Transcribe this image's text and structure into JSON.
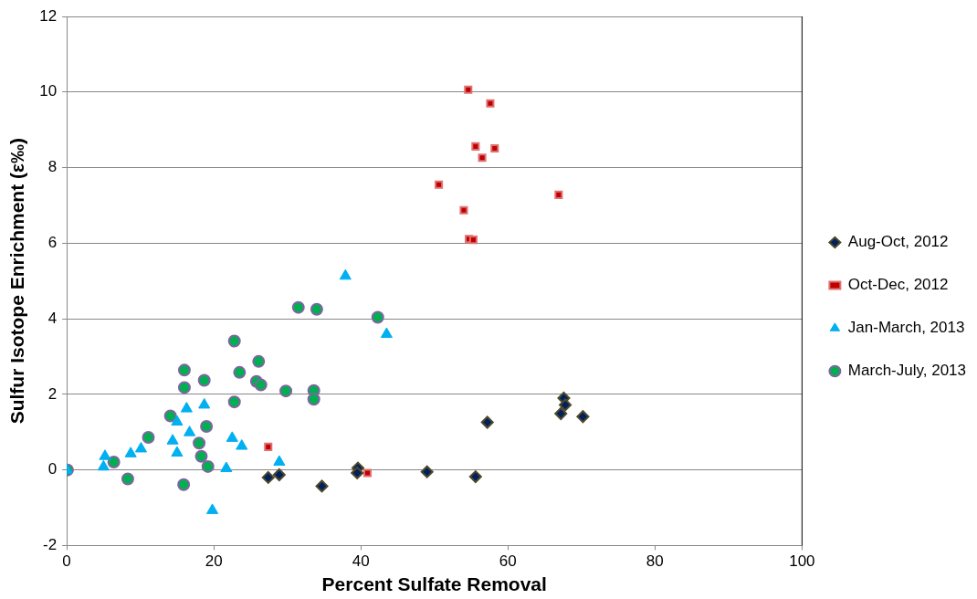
{
  "chart_data": {
    "type": "scatter",
    "xlabel": "Percent Sulfate Removal",
    "ylabel": "Sulfur Isotope Enrichment (ε‰)",
    "xlim": [
      0,
      100
    ],
    "xticks": [
      0,
      20,
      40,
      60,
      80,
      100
    ],
    "ylim": [
      -2,
      12
    ],
    "yticks": [
      -2,
      0,
      2,
      4,
      6,
      8,
      10,
      12
    ],
    "grid": "y",
    "legend": "right",
    "series": [
      {
        "name": "Aug-Oct, 2012",
        "color": "#002060",
        "marker": "diamond",
        "x": [
          27.4,
          28.9,
          34.7,
          39.6,
          39.5,
          49.0,
          55.6,
          57.2,
          67.6,
          67.8,
          67.2,
          70.2
        ],
        "values": [
          -0.2,
          -0.13,
          -0.43,
          0.05,
          -0.08,
          -0.05,
          -0.18,
          1.26,
          1.9,
          1.72,
          1.49,
          1.41
        ]
      },
      {
        "name": "Oct-Dec, 2012",
        "color": "#c00000",
        "marker": "square",
        "x": [
          54.6,
          57.6,
          55.6,
          58.2,
          56.5,
          50.6,
          66.9,
          54.0,
          54.7,
          55.3,
          27.4,
          40.9
        ],
        "values": [
          10.06,
          9.7,
          8.56,
          8.51,
          8.26,
          7.55,
          7.28,
          6.87,
          6.11,
          6.09,
          0.61,
          -0.08
        ]
      },
      {
        "name": "Jan-March, 2013",
        "color": "#00b0f0",
        "marker": "triangle",
        "x": [
          0,
          5.2,
          5.0,
          8.7,
          10.1,
          16.3,
          18.7,
          15.0,
          16.7,
          14.4,
          15.0,
          22.5,
          23.8,
          21.7,
          28.9,
          19.8,
          37.9,
          43.5
        ],
        "values": [
          0,
          0.36,
          0.08,
          0.43,
          0.56,
          1.62,
          1.72,
          1.27,
          0.99,
          0.77,
          0.45,
          0.84,
          0.63,
          0.04,
          0.21,
          -1.07,
          5.13,
          3.59
        ]
      },
      {
        "name": "March-July, 2013",
        "color": "#00b050",
        "marker": "circle",
        "x": [
          0.1,
          6.4,
          8.3,
          11.1,
          14.1,
          16.0,
          16.0,
          15.9,
          18.7,
          19.0,
          18.0,
          18.3,
          19.2,
          22.8,
          22.8,
          23.5,
          26.1,
          25.8,
          26.4,
          29.8,
          31.5,
          34.0,
          42.3,
          33.6,
          33.6
        ],
        "values": [
          0,
          0.21,
          -0.24,
          0.86,
          1.43,
          2.64,
          2.18,
          -0.39,
          2.37,
          1.15,
          0.71,
          0.36,
          0.09,
          3.41,
          1.8,
          2.58,
          2.87,
          2.34,
          2.25,
          2.09,
          4.3,
          4.25,
          4.04,
          2.1,
          1.87
        ]
      }
    ]
  }
}
